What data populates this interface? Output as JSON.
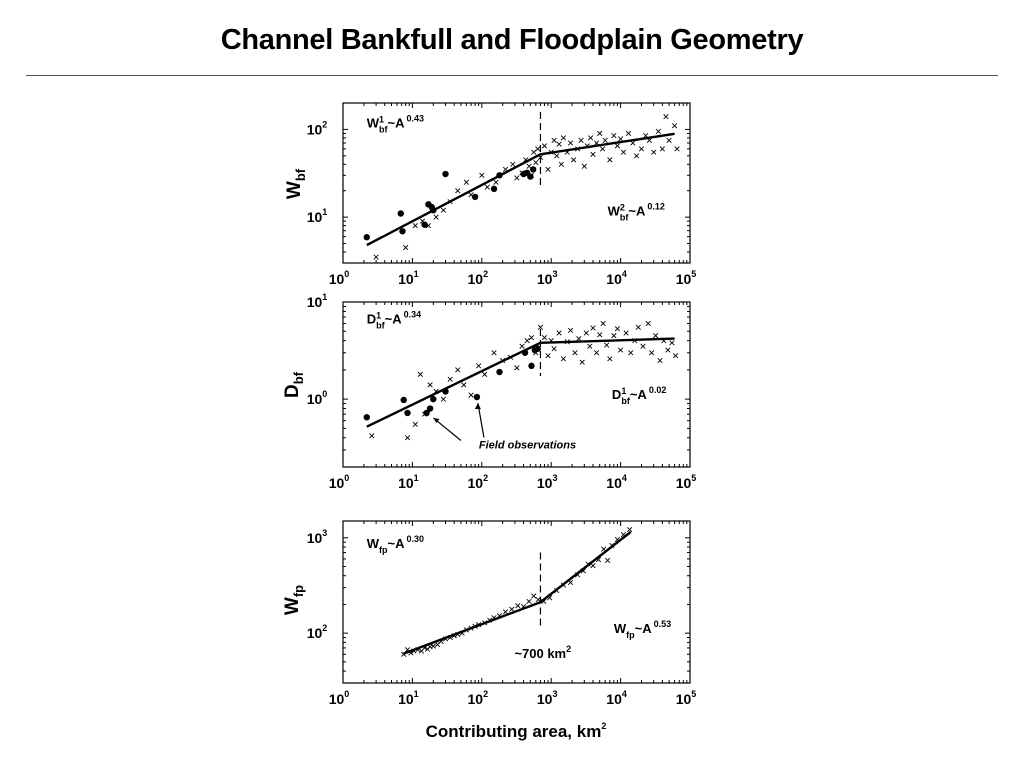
{
  "title": "Channel Bankfull and Floodplain Geometry",
  "xlabel": "Contributing area, km",
  "xlabel_sup": "2",
  "chart_data": [
    {
      "type": "scatter",
      "xscale": "log",
      "yscale": "log",
      "xlim": [
        1,
        100000
      ],
      "ylim": [
        3,
        200
      ],
      "ylabel": "W",
      "ylabel_sub": "bf",
      "yticks": [
        {
          "value": 10,
          "label": "10",
          "sup": "1"
        },
        {
          "value": 100,
          "label": "10",
          "sup": "2"
        }
      ],
      "xticks": [
        {
          "value": 1,
          "label": "10",
          "sup": "0"
        },
        {
          "value": 10,
          "label": "10",
          "sup": "1"
        },
        {
          "value": 100,
          "label": "10",
          "sup": "2"
        },
        {
          "value": 1000,
          "label": "10",
          "sup": "3"
        },
        {
          "value": 10000,
          "label": "10",
          "sup": "4"
        },
        {
          "value": 100000,
          "label": "10",
          "sup": "5"
        }
      ],
      "threshold_x": 700,
      "annotations": [
        {
          "base": "W",
          "sub": "bf",
          "sup": "1",
          "rest": "~A",
          "exp": "0.43",
          "x": 2.2,
          "y": 105
        },
        {
          "base": "W",
          "sub": "bf",
          "sup": "2",
          "rest": "~A",
          "exp": "0.12",
          "x": 6500,
          "y": 10.5
        }
      ],
      "fit": [
        [
          2.2,
          4.8
        ],
        [
          700,
          52
        ],
        [
          60000,
          89
        ]
      ],
      "series": [
        {
          "kind": "field",
          "points": [
            [
              2.2,
              5.9
            ],
            [
              6.8,
              11
            ],
            [
              7.2,
              6.9
            ],
            [
              15,
              8.2
            ],
            [
              17,
              14
            ],
            [
              19,
              13
            ],
            [
              20,
              12
            ],
            [
              30,
              31
            ],
            [
              80,
              17
            ],
            [
              150,
              21
            ],
            [
              180,
              30
            ],
            [
              400,
              31
            ],
            [
              450,
              32
            ],
            [
              500,
              29
            ],
            [
              550,
              35
            ]
          ]
        },
        {
          "kind": "survey",
          "points": [
            [
              3,
              3.5
            ],
            [
              8,
              4.5
            ],
            [
              11,
              8
            ],
            [
              14,
              9
            ],
            [
              17,
              8
            ],
            [
              22,
              10
            ],
            [
              28,
              12
            ],
            [
              35,
              15
            ],
            [
              45,
              20
            ],
            [
              60,
              25
            ],
            [
              70,
              18
            ],
            [
              100,
              30
            ],
            [
              120,
              22
            ],
            [
              160,
              25
            ],
            [
              220,
              35
            ],
            [
              280,
              40
            ],
            [
              320,
              28
            ],
            [
              380,
              32
            ],
            [
              430,
              45
            ],
            [
              480,
              38
            ],
            [
              520,
              30
            ],
            [
              560,
              55
            ],
            [
              600,
              42
            ],
            [
              640,
              60
            ],
            [
              700,
              48
            ],
            [
              800,
              65
            ],
            [
              900,
              35
            ],
            [
              1000,
              55
            ],
            [
              1100,
              75
            ],
            [
              1200,
              50
            ],
            [
              1300,
              68
            ],
            [
              1400,
              40
            ],
            [
              1500,
              80
            ],
            [
              1700,
              55
            ],
            [
              1900,
              70
            ],
            [
              2100,
              45
            ],
            [
              2400,
              60
            ],
            [
              2700,
              75
            ],
            [
              3000,
              38
            ],
            [
              3300,
              65
            ],
            [
              3700,
              80
            ],
            [
              4000,
              52
            ],
            [
              4500,
              70
            ],
            [
              5000,
              90
            ],
            [
              5500,
              60
            ],
            [
              6000,
              75
            ],
            [
              7000,
              45
            ],
            [
              8000,
              85
            ],
            [
              9000,
              65
            ],
            [
              10000,
              78
            ],
            [
              11000,
              55
            ],
            [
              13000,
              90
            ],
            [
              15000,
              70
            ],
            [
              17000,
              50
            ],
            [
              20000,
              60
            ],
            [
              23000,
              85
            ],
            [
              26000,
              75
            ],
            [
              30000,
              55
            ],
            [
              35000,
              95
            ],
            [
              40000,
              60
            ],
            [
              45000,
              140
            ],
            [
              50000,
              75
            ],
            [
              60000,
              110
            ],
            [
              65000,
              60
            ]
          ]
        }
      ]
    },
    {
      "type": "scatter",
      "xscale": "log",
      "yscale": "log",
      "xlim": [
        1,
        100000
      ],
      "ylim": [
        0.2,
        10
      ],
      "ylabel": "D",
      "ylabel_sub": "bf",
      "yticks": [
        {
          "value": 1,
          "label": "10",
          "sup": "0"
        },
        {
          "value": 10,
          "label": "10",
          "sup": "1"
        }
      ],
      "xticks": [
        {
          "value": 1,
          "label": "10",
          "sup": "0"
        },
        {
          "value": 10,
          "label": "10",
          "sup": "1"
        },
        {
          "value": 100,
          "label": "10",
          "sup": "2"
        },
        {
          "value": 1000,
          "label": "10",
          "sup": "3"
        },
        {
          "value": 10000,
          "label": "10",
          "sup": "4"
        },
        {
          "value": 100000,
          "label": "10",
          "sup": "5"
        }
      ],
      "threshold_x": 700,
      "annotations": [
        {
          "base": "D",
          "sub": "bf",
          "sup": "1",
          "rest": "~A",
          "exp": "0.34",
          "x": 2.2,
          "y": 6.0
        },
        {
          "base": "D",
          "sub": "bf",
          "sup": "1",
          "rest": "~A",
          "exp": "0.02",
          "x": 7500,
          "y": 1.0
        }
      ],
      "callout": {
        "text": "Field observations",
        "x": 85,
        "y": 0.31
      },
      "fit": [
        [
          2.2,
          0.52
        ],
        [
          700,
          3.8
        ],
        [
          60000,
          4.2
        ]
      ],
      "series": [
        {
          "kind": "field",
          "points": [
            [
              2.2,
              0.65
            ],
            [
              7.5,
              0.98
            ],
            [
              8.5,
              0.72
            ],
            [
              16,
              0.72
            ],
            [
              18,
              0.8
            ],
            [
              20,
              1.0
            ],
            [
              30,
              1.2
            ],
            [
              85,
              1.05
            ],
            [
              180,
              1.9
            ],
            [
              420,
              3.0
            ],
            [
              520,
              2.2
            ],
            [
              580,
              3.2
            ],
            [
              640,
              3.3
            ]
          ]
        },
        {
          "kind": "survey",
          "points": [
            [
              2.6,
              0.42
            ],
            [
              8.5,
              0.4
            ],
            [
              11,
              0.55
            ],
            [
              13,
              1.8
            ],
            [
              15,
              0.7
            ],
            [
              18,
              1.4
            ],
            [
              22,
              1.2
            ],
            [
              28,
              1.0
            ],
            [
              35,
              1.6
            ],
            [
              45,
              2.0
            ],
            [
              55,
              1.4
            ],
            [
              70,
              1.1
            ],
            [
              90,
              2.2
            ],
            [
              110,
              1.8
            ],
            [
              150,
              3.0
            ],
            [
              200,
              2.5
            ],
            [
              260,
              2.7
            ],
            [
              320,
              2.1
            ],
            [
              380,
              3.5
            ],
            [
              450,
              4.0
            ],
            [
              520,
              4.3
            ],
            [
              600,
              3.0
            ],
            [
              700,
              5.5
            ],
            [
              800,
              4.3
            ],
            [
              900,
              2.8
            ],
            [
              1000,
              4.0
            ],
            [
              1100,
              3.3
            ],
            [
              1300,
              4.8
            ],
            [
              1500,
              2.6
            ],
            [
              1700,
              3.9
            ],
            [
              1900,
              5.1
            ],
            [
              2200,
              3.0
            ],
            [
              2500,
              4.2
            ],
            [
              2800,
              2.4
            ],
            [
              3200,
              4.8
            ],
            [
              3600,
              3.5
            ],
            [
              4000,
              5.4
            ],
            [
              4500,
              3.0
            ],
            [
              5000,
              4.6
            ],
            [
              5600,
              6.0
            ],
            [
              6300,
              3.6
            ],
            [
              7000,
              2.6
            ],
            [
              8000,
              4.5
            ],
            [
              9000,
              5.3
            ],
            [
              10000,
              3.2
            ],
            [
              12000,
              4.8
            ],
            [
              14000,
              3.0
            ],
            [
              16000,
              4.0
            ],
            [
              18000,
              5.5
            ],
            [
              21000,
              3.5
            ],
            [
              25000,
              6.0
            ],
            [
              28000,
              3.0
            ],
            [
              32000,
              4.5
            ],
            [
              37000,
              2.5
            ],
            [
              42000,
              4.0
            ],
            [
              48000,
              3.2
            ],
            [
              55000,
              3.8
            ],
            [
              62000,
              2.8
            ]
          ]
        }
      ]
    },
    {
      "type": "scatter",
      "xscale": "log",
      "yscale": "log",
      "xlim": [
        1,
        100000
      ],
      "ylim": [
        30,
        1500
      ],
      "ylabel": "W",
      "ylabel_sub": "fp",
      "yticks": [
        {
          "value": 100,
          "label": "10",
          "sup": "2"
        },
        {
          "value": 1000,
          "label": "10",
          "sup": "3"
        }
      ],
      "xticks": [
        {
          "value": 1,
          "label": "10",
          "sup": "0"
        },
        {
          "value": 10,
          "label": "10",
          "sup": "1"
        },
        {
          "value": 100,
          "label": "10",
          "sup": "2"
        },
        {
          "value": 1000,
          "label": "10",
          "sup": "3"
        },
        {
          "value": 10000,
          "label": "10",
          "sup": "4"
        },
        {
          "value": 100000,
          "label": "10",
          "sup": "5"
        }
      ],
      "threshold_x": 700,
      "threshold_label": "~700 km",
      "threshold_label_sup": "2",
      "annotations": [
        {
          "base": "W",
          "sub": "fp",
          "sup": "",
          "rest": "~A",
          "exp": "0.30",
          "x": 2.2,
          "y": 780
        },
        {
          "base": "W",
          "sub": "fp",
          "sup": "",
          "rest": "~A",
          "exp": "0.53",
          "x": 8000,
          "y": 100
        }
      ],
      "fit": [
        [
          7.5,
          61
        ],
        [
          700,
          211
        ],
        [
          14000,
          1150
        ]
      ],
      "series": [
        {
          "kind": "survey",
          "points": [
            [
              7.5,
              60
            ],
            [
              8.5,
              67
            ],
            [
              9.5,
              62
            ],
            [
              10.5,
              65
            ],
            [
              12,
              67
            ],
            [
              13.5,
              65
            ],
            [
              15,
              70
            ],
            [
              16.5,
              68
            ],
            [
              18,
              72
            ],
            [
              20,
              73
            ],
            [
              23,
              76
            ],
            [
              26,
              82
            ],
            [
              30,
              87
            ],
            [
              35,
              90
            ],
            [
              40,
              94
            ],
            [
              45,
              97
            ],
            [
              52,
              100
            ],
            [
              60,
              108
            ],
            [
              70,
              113
            ],
            [
              80,
              118
            ],
            [
              90,
              123
            ],
            [
              110,
              128
            ],
            [
              130,
              137
            ],
            [
              150,
              145
            ],
            [
              180,
              152
            ],
            [
              220,
              167
            ],
            [
              270,
              178
            ],
            [
              330,
              194
            ],
            [
              400,
              190
            ],
            [
              480,
              215
            ],
            [
              560,
              245
            ],
            [
              650,
              225
            ],
            [
              780,
              215
            ],
            [
              950,
              235
            ],
            [
              1200,
              280
            ],
            [
              1500,
              320
            ],
            [
              1900,
              340
            ],
            [
              2400,
              410
            ],
            [
              2900,
              450
            ],
            [
              3400,
              530
            ],
            [
              4000,
              510
            ],
            [
              4800,
              590
            ],
            [
              5700,
              760
            ],
            [
              6500,
              580
            ],
            [
              7500,
              830
            ],
            [
              9000,
              960
            ],
            [
              11000,
              1080
            ],
            [
              13500,
              1220
            ]
          ]
        }
      ]
    }
  ]
}
